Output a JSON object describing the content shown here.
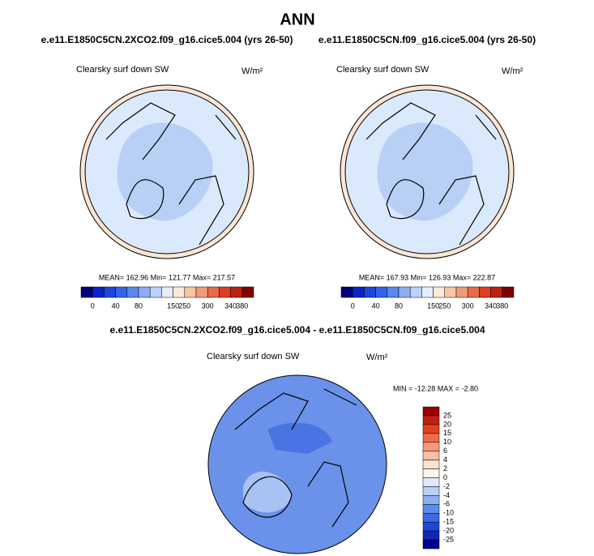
{
  "title": "ANN",
  "panels": [
    {
      "case": "e.e11.E1850C5CN.2XCO2.f09_g16.cice5.004 (yrs 26-50)",
      "field": "Clearsky surf down SW",
      "units": "W/m²",
      "stats": "MEAN= 162.96  Min= 121.77  Max= 217.57",
      "colorbar_labels": [
        0,
        40,
        80,
        150,
        250,
        300,
        340,
        380
      ]
    },
    {
      "case": "e.e11.E1850C5CN.f09_g16.cice5.004 (yrs 26-50)",
      "field": "Clearsky surf down SW",
      "units": "W/m²",
      "stats": "MEAN= 167.93  Min= 126.93  Max= 222.87",
      "colorbar_labels": [
        0,
        40,
        80,
        150,
        250,
        300,
        340,
        380
      ]
    }
  ],
  "difference": {
    "case": "e.e11.E1850C5CN.2XCO2.f09_g16.cice5.004 - e.e11.E1850C5CN.f09_g16.cice5.004",
    "field": "Clearsky surf down SW",
    "units": "W/m²",
    "stats": "MIN = -12.28 MAX =  -2.80",
    "colorbar_labels": [
      25,
      20,
      15,
      10,
      6,
      4,
      2,
      0,
      -2,
      -4,
      -6,
      -10,
      -15,
      -20,
      -25
    ]
  }
}
